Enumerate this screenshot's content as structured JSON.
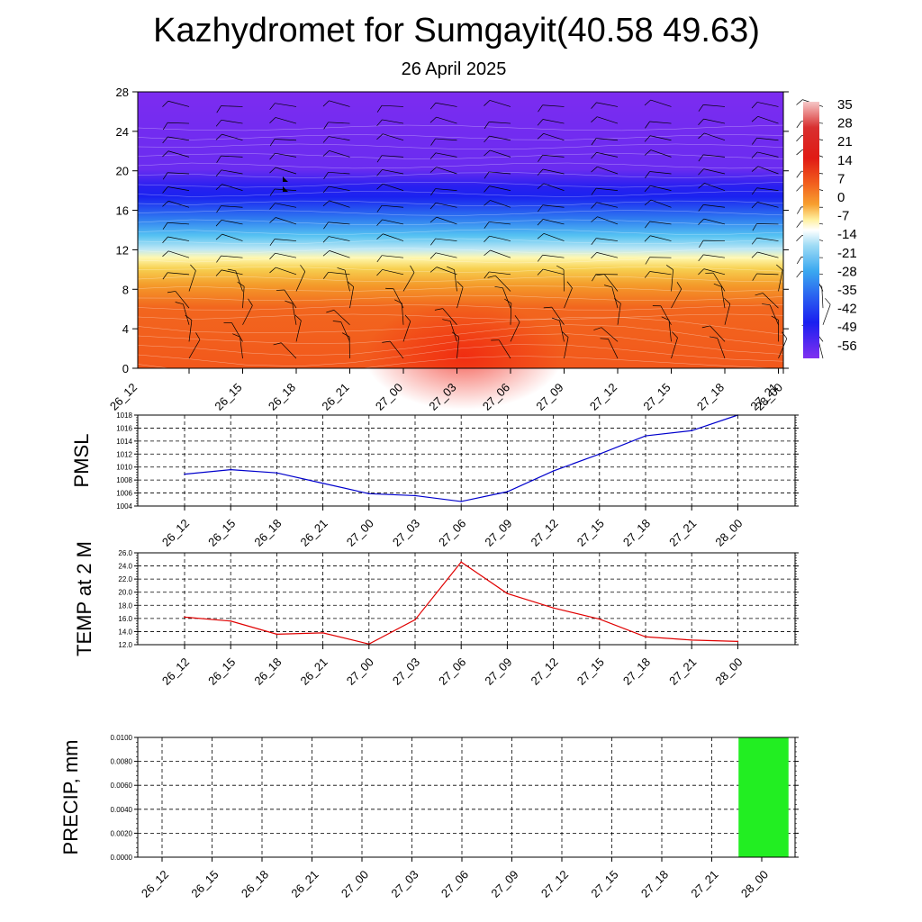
{
  "title": "Kazhydromet for Sumgayit(40.58 49.63)",
  "subtitle": "26 April 2025",
  "chart_data": [
    {
      "type": "heatmap",
      "panel": "upper-air",
      "ylim": [
        0,
        28
      ],
      "yticks": [
        0,
        4,
        8,
        12,
        16,
        20,
        24,
        28
      ],
      "categories": [
        "26_12",
        "26_15",
        "26_18",
        "26_21",
        "27_00",
        "27_03",
        "27_06",
        "27_09",
        "27_12",
        "27_15",
        "27_18",
        "27_21",
        "28_00"
      ],
      "colorbar_labels": [
        "35",
        "28",
        "21",
        "14",
        "7",
        "0",
        "-7",
        "-14",
        "-21",
        "-28",
        "-35",
        "-42",
        "-49",
        "-56"
      ],
      "colors": {
        "warm": "#e8501a",
        "hot": "#f02d10",
        "cold_top": "#7b2cf0",
        "cold_band": "#1a1ff0",
        "mid_cold": "#3aa8f0",
        "freezing": "#fff7a8"
      }
    },
    {
      "type": "line",
      "ylabel": "PMSL",
      "categories": [
        "26_12",
        "26_15",
        "26_18",
        "26_21",
        "27_00",
        "27_03",
        "27_06",
        "27_09",
        "27_12",
        "27_15",
        "27_18",
        "27_21",
        "28_00"
      ],
      "ylim": [
        1004,
        1018
      ],
      "yticks": [
        "1004",
        "1006",
        "1008",
        "1010",
        "1012",
        "1014",
        "1016",
        "1018"
      ],
      "values": [
        1008.9,
        1009.6,
        1009.1,
        1007.5,
        1005.9,
        1005.6,
        1004.7,
        1006.2,
        1009.4,
        1012.0,
        1014.8,
        1015.6,
        1018.0
      ],
      "color": "#0000cc"
    },
    {
      "type": "line",
      "ylabel": "TEMP at 2 M",
      "categories": [
        "26_12",
        "26_15",
        "26_18",
        "26_21",
        "27_00",
        "27_03",
        "27_06",
        "27_09",
        "27_12",
        "27_15",
        "27_18",
        "27_21",
        "28_00"
      ],
      "ylim": [
        12,
        26
      ],
      "yticks": [
        "12.0",
        "14.0",
        "16.0",
        "18.0",
        "20.0",
        "22.0",
        "24.0",
        "26.0"
      ],
      "values": [
        16.2,
        15.6,
        13.6,
        13.8,
        12.1,
        15.8,
        24.6,
        19.8,
        17.6,
        15.9,
        13.2,
        12.7,
        12.5
      ],
      "color": "#e00000"
    },
    {
      "type": "bar",
      "ylabel": "PRECIP, mm",
      "categories": [
        "26_12",
        "26_15",
        "26_18",
        "26_21",
        "27_00",
        "27_03",
        "27_06",
        "27_09",
        "27_12",
        "27_15",
        "27_18",
        "27_21",
        "28_00"
      ],
      "ylim": [
        0,
        0.01
      ],
      "yticks": [
        "0.0000",
        "0.0020",
        "0.0040",
        "0.0060",
        "0.0080",
        "0.0100"
      ],
      "values": [
        0,
        0,
        0,
        0,
        0,
        0,
        0,
        0,
        0,
        0,
        0,
        0,
        0.01
      ],
      "color": "#22ee22"
    }
  ]
}
